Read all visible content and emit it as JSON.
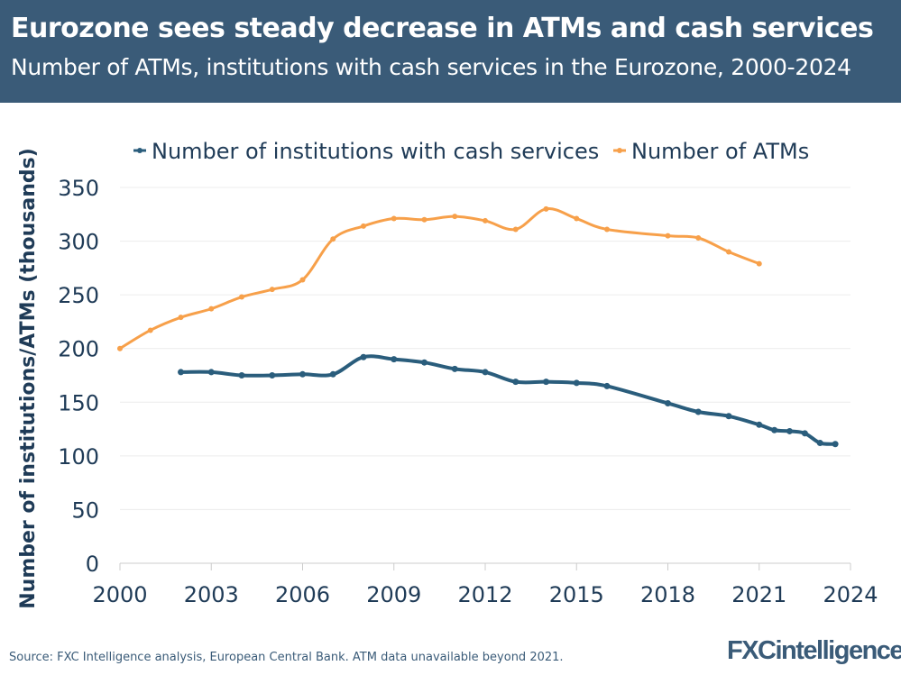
{
  "header": {
    "title": "Eurozone sees steady decrease in ATMs and cash services",
    "subtitle": "Number of ATMs, institutions with cash services in the Eurozone, 2000-2024"
  },
  "footer": {
    "source": "Source: FXC Intelligence analysis, European Central Bank. ATM data unavailable beyond 2021.",
    "logo": "FXCintelligence"
  },
  "chart_data": {
    "type": "line",
    "title": "",
    "xlabel": "",
    "ylabel": "Number of institutions/ATMs (thousands)",
    "xlim": [
      2000,
      2024
    ],
    "ylim": [
      0,
      350
    ],
    "x_ticks": [
      "2000",
      "2003",
      "2006",
      "2009",
      "2012",
      "2015",
      "2018",
      "2021",
      "2024"
    ],
    "y_ticks": [
      "0",
      "50",
      "100",
      "150",
      "200",
      "250",
      "300",
      "350"
    ],
    "grid": "horizontal",
    "legend": "top",
    "series": [
      {
        "name": "Number of institutions with cash services",
        "color": "#2a5d7c",
        "x": [
          2002,
          2003,
          2004,
          2005,
          2006,
          2007,
          2008,
          2009,
          2010,
          2011,
          2012,
          2013,
          2014,
          2015,
          2016,
          2018,
          2019,
          2020,
          2021,
          2021.5,
          2022,
          2022.5,
          2023,
          2023.5
        ],
        "y": [
          178,
          178,
          175,
          175,
          176,
          176,
          192,
          190,
          187,
          181,
          178,
          169,
          169,
          168,
          165,
          149,
          141,
          137,
          129,
          124,
          123,
          121,
          112,
          111
        ]
      },
      {
        "name": "Number of ATMs",
        "color": "#f7a04a",
        "x": [
          2000,
          2001,
          2002,
          2003,
          2004,
          2005,
          2006,
          2007,
          2008,
          2009,
          2010,
          2011,
          2012,
          2013,
          2014,
          2015,
          2016,
          2018,
          2019,
          2020,
          2021
        ],
        "y": [
          200,
          217,
          229,
          237,
          248,
          255,
          264,
          302,
          314,
          321,
          320,
          323,
          319,
          311,
          330,
          321,
          311,
          305,
          303,
          290,
          279
        ]
      }
    ]
  }
}
